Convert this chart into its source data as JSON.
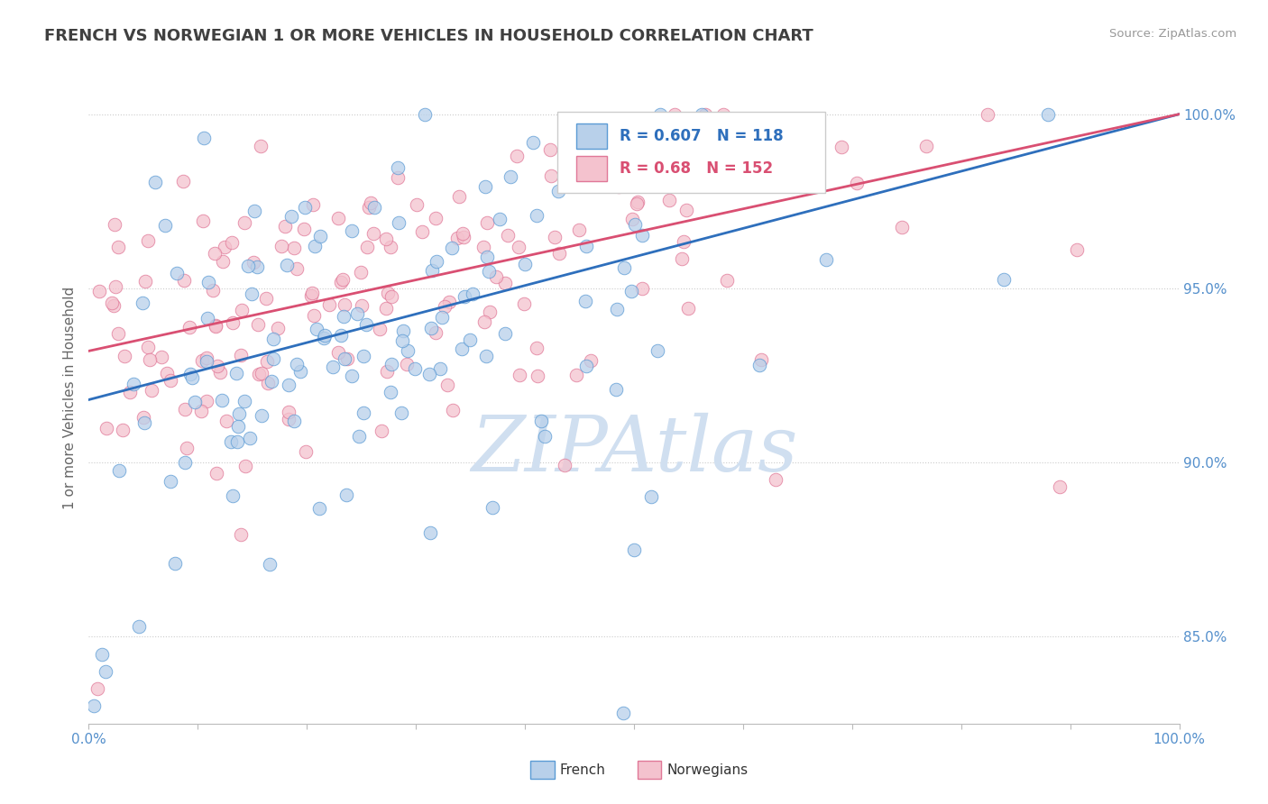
{
  "title": "FRENCH VS NORWEGIAN 1 OR MORE VEHICLES IN HOUSEHOLD CORRELATION CHART",
  "source": "Source: ZipAtlas.com",
  "ylabel": "1 or more Vehicles in Household",
  "ytick_values": [
    85.0,
    90.0,
    95.0,
    100.0
  ],
  "xmin": 0.0,
  "xmax": 100.0,
  "ymin": 82.5,
  "ymax": 101.2,
  "french_R": 0.607,
  "french_N": 118,
  "norwegian_R": 0.68,
  "norwegian_N": 152,
  "french_color": "#b8d0ea",
  "french_edge_color": "#5b9bd5",
  "french_line_color": "#2e6fbc",
  "norwegian_color": "#f4c2ce",
  "norwegian_edge_color": "#e07898",
  "norwegian_line_color": "#d94f72",
  "legend_blue_text_color": "#2e6fbc",
  "legend_pink_text_color": "#d94f72",
  "watermark_color": "#d0dff0",
  "title_color": "#404040",
  "axis_tick_color": "#5590cc",
  "source_color": "#999999",
  "french_trend_x0": 0.0,
  "french_trend_y0": 91.8,
  "french_trend_x1": 100.0,
  "french_trend_y1": 100.0,
  "norwegian_trend_x0": 0.0,
  "norwegian_trend_y0": 93.2,
  "norwegian_trend_x1": 100.0,
  "norwegian_trend_y1": 100.0
}
